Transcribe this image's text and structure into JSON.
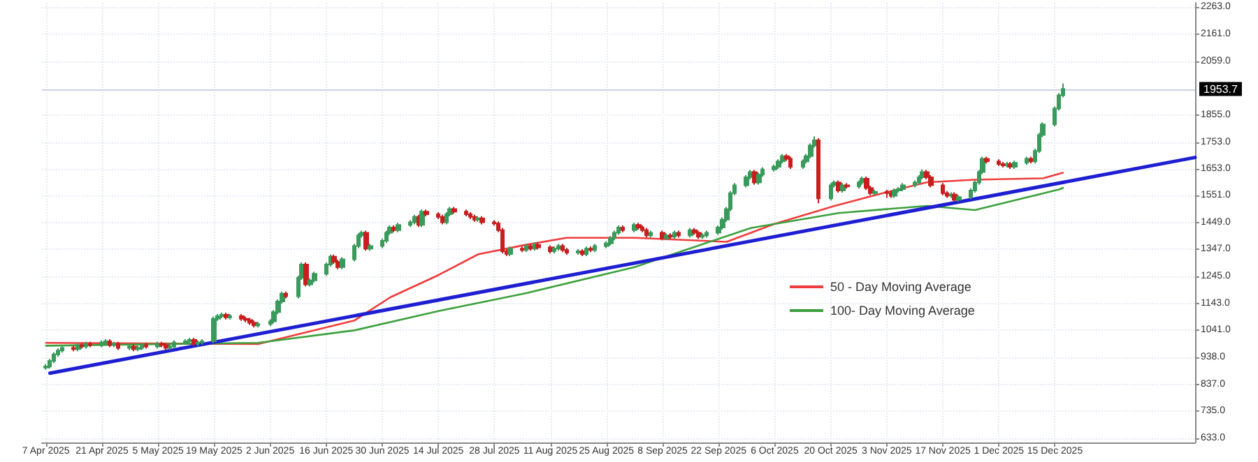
{
  "chart_data": {
    "type": "candlestick",
    "x": [
      "2025-04-07",
      "2025-04-08",
      "2025-04-09",
      "2025-04-10",
      "2025-04-11",
      "2025-04-14",
      "2025-04-15",
      "2025-04-16",
      "2025-04-17",
      "2025-04-18",
      "2025-04-21",
      "2025-04-22",
      "2025-04-23",
      "2025-04-24",
      "2025-04-25",
      "2025-04-28",
      "2025-04-29",
      "2025-04-30",
      "2025-05-01",
      "2025-05-02",
      "2025-05-05",
      "2025-05-06",
      "2025-05-07",
      "2025-05-08",
      "2025-05-09",
      "2025-05-12",
      "2025-05-13",
      "2025-05-14",
      "2025-05-15",
      "2025-05-16",
      "2025-05-19",
      "2025-05-20",
      "2025-05-21",
      "2025-05-22",
      "2025-05-23",
      "2025-05-26",
      "2025-05-27",
      "2025-05-28",
      "2025-05-29",
      "2025-05-30",
      "2025-06-02",
      "2025-06-03",
      "2025-06-04",
      "2025-06-05",
      "2025-06-06",
      "2025-06-09",
      "2025-06-10",
      "2025-06-11",
      "2025-06-12",
      "2025-06-13",
      "2025-06-16",
      "2025-06-17",
      "2025-06-18",
      "2025-06-19",
      "2025-06-20",
      "2025-06-23",
      "2025-06-24",
      "2025-06-25",
      "2025-06-26",
      "2025-06-27",
      "2025-06-30",
      "2025-07-01",
      "2025-07-02",
      "2025-07-03",
      "2025-07-04",
      "2025-07-07",
      "2025-07-08",
      "2025-07-09",
      "2025-07-10",
      "2025-07-11",
      "2025-07-14",
      "2025-07-15",
      "2025-07-16",
      "2025-07-17",
      "2025-07-18",
      "2025-07-21",
      "2025-07-22",
      "2025-07-23",
      "2025-07-24",
      "2025-07-25",
      "2025-07-28",
      "2025-07-29",
      "2025-07-30",
      "2025-07-31",
      "2025-08-01",
      "2025-08-04",
      "2025-08-05",
      "2025-08-06",
      "2025-08-07",
      "2025-08-08",
      "2025-08-11",
      "2025-08-12",
      "2025-08-13",
      "2025-08-14",
      "2025-08-15",
      "2025-08-18",
      "2025-08-19",
      "2025-08-20",
      "2025-08-21",
      "2025-08-22",
      "2025-08-25",
      "2025-08-26",
      "2025-08-27",
      "2025-08-28",
      "2025-08-29",
      "2025-09-01",
      "2025-09-02",
      "2025-09-03",
      "2025-09-04",
      "2025-09-05",
      "2025-09-08",
      "2025-09-09",
      "2025-09-10",
      "2025-09-11",
      "2025-09-12",
      "2025-09-15",
      "2025-09-16",
      "2025-09-17",
      "2025-09-18",
      "2025-09-19",
      "2025-09-22",
      "2025-09-23",
      "2025-09-24",
      "2025-09-25",
      "2025-09-26",
      "2025-09-29",
      "2025-09-30",
      "2025-10-01",
      "2025-10-02",
      "2025-10-03",
      "2025-10-06",
      "2025-10-07",
      "2025-10-08",
      "2025-10-09",
      "2025-10-10",
      "2025-10-13",
      "2025-10-14",
      "2025-10-15",
      "2025-10-16",
      "2025-10-17",
      "2025-10-20",
      "2025-10-21",
      "2025-10-22",
      "2025-10-23",
      "2025-10-24",
      "2025-10-27",
      "2025-10-28",
      "2025-10-29",
      "2025-10-30",
      "2025-10-31",
      "2025-11-03",
      "2025-11-04",
      "2025-11-05",
      "2025-11-06",
      "2025-11-07",
      "2025-11-10",
      "2025-11-11",
      "2025-11-12",
      "2025-11-13",
      "2025-11-14",
      "2025-11-17",
      "2025-11-18",
      "2025-11-19",
      "2025-11-20",
      "2025-11-21",
      "2025-11-24",
      "2025-11-25",
      "2025-11-26",
      "2025-11-27",
      "2025-11-28",
      "2025-12-01",
      "2025-12-02",
      "2025-12-03",
      "2025-12-04",
      "2025-12-05",
      "2025-12-08",
      "2025-12-09",
      "2025-12-10",
      "2025-12-11",
      "2025-12-12",
      "2025-12-15",
      "2025-12-16",
      "2025-12-17"
    ],
    "ohlc": [
      [
        900,
        913,
        892,
        905
      ],
      [
        905,
        933,
        897,
        925
      ],
      [
        925,
        958,
        917,
        950
      ],
      [
        950,
        973,
        942,
        965
      ],
      [
        965,
        983,
        957,
        975
      ],
      [
        975,
        983,
        962,
        970
      ],
      [
        970,
        993,
        962,
        985
      ],
      [
        985,
        993,
        972,
        980
      ],
      [
        980,
        998,
        972,
        990
      ],
      [
        990,
        998,
        977,
        985
      ],
      [
        985,
        1003,
        977,
        995
      ],
      [
        995,
        1008,
        987,
        1000
      ],
      [
        1000,
        1008,
        977,
        985
      ],
      [
        985,
        998,
        977,
        990
      ],
      [
        990,
        998,
        967,
        975
      ],
      [
        975,
        988,
        967,
        980
      ],
      [
        980,
        988,
        962,
        970
      ],
      [
        970,
        983,
        962,
        975
      ],
      [
        975,
        993,
        967,
        985
      ],
      [
        985,
        993,
        972,
        980
      ],
      [
        980,
        998,
        972,
        990
      ],
      [
        990,
        998,
        977,
        985
      ],
      [
        985,
        993,
        967,
        975
      ],
      [
        975,
        988,
        967,
        980
      ],
      [
        980,
        1003,
        972,
        995
      ],
      [
        995,
        1008,
        987,
        1000
      ],
      [
        1000,
        1013,
        992,
        1005
      ],
      [
        1005,
        1013,
        982,
        990
      ],
      [
        990,
        1003,
        982,
        995
      ],
      [
        995,
        1008,
        987,
        1000
      ],
      [
        1000,
        1093,
        992,
        1085
      ],
      [
        1085,
        1103,
        1077,
        1095
      ],
      [
        1095,
        1108,
        1087,
        1100
      ],
      [
        1100,
        1108,
        1082,
        1090
      ],
      [
        1090,
        1103,
        1082,
        1095
      ],
      [
        1095,
        1103,
        1077,
        1085
      ],
      [
        1085,
        1093,
        1072,
        1080
      ],
      [
        1080,
        1088,
        1062,
        1070
      ],
      [
        1070,
        1078,
        1052,
        1060
      ],
      [
        1060,
        1073,
        1052,
        1065
      ],
      [
        1065,
        1083,
        1057,
        1075
      ],
      [
        1075,
        1118,
        1067,
        1110
      ],
      [
        1110,
        1158,
        1102,
        1150
      ],
      [
        1150,
        1188,
        1142,
        1180
      ],
      [
        1180,
        1188,
        1162,
        1170
      ],
      [
        1170,
        1248,
        1162,
        1240
      ],
      [
        1240,
        1298,
        1232,
        1290
      ],
      [
        1290,
        1298,
        1207,
        1215
      ],
      [
        1215,
        1238,
        1207,
        1230
      ],
      [
        1230,
        1263,
        1222,
        1255
      ],
      [
        1255,
        1298,
        1247,
        1290
      ],
      [
        1290,
        1328,
        1282,
        1320
      ],
      [
        1320,
        1328,
        1292,
        1300
      ],
      [
        1300,
        1308,
        1272,
        1280
      ],
      [
        1280,
        1318,
        1272,
        1310
      ],
      [
        1310,
        1368,
        1302,
        1360
      ],
      [
        1360,
        1408,
        1352,
        1400
      ],
      [
        1400,
        1418,
        1392,
        1410
      ],
      [
        1410,
        1418,
        1342,
        1350
      ],
      [
        1350,
        1368,
        1342,
        1360
      ],
      [
        1360,
        1388,
        1352,
        1380
      ],
      [
        1380,
        1418,
        1372,
        1410
      ],
      [
        1410,
        1438,
        1402,
        1430
      ],
      [
        1430,
        1438,
        1412,
        1420
      ],
      [
        1420,
        1448,
        1412,
        1440
      ],
      [
        1440,
        1458,
        1432,
        1450
      ],
      [
        1450,
        1478,
        1442,
        1470
      ],
      [
        1470,
        1478,
        1432,
        1440
      ],
      [
        1440,
        1498,
        1432,
        1490
      ],
      [
        1490,
        1498,
        1472,
        1480
      ],
      [
        1480,
        1488,
        1462,
        1470
      ],
      [
        1470,
        1478,
        1442,
        1450
      ],
      [
        1450,
        1488,
        1442,
        1480
      ],
      [
        1480,
        1508,
        1472,
        1500
      ],
      [
        1500,
        1508,
        1482,
        1490
      ],
      [
        1490,
        1498,
        1472,
        1480
      ],
      [
        1480,
        1488,
        1462,
        1470
      ],
      [
        1470,
        1478,
        1452,
        1460
      ],
      [
        1460,
        1473,
        1452,
        1465
      ],
      [
        1465,
        1473,
        1442,
        1450
      ],
      [
        1450,
        1458,
        1437,
        1445
      ],
      [
        1445,
        1453,
        1412,
        1420
      ],
      [
        1420,
        1428,
        1332,
        1340
      ],
      [
        1340,
        1348,
        1322,
        1330
      ],
      [
        1330,
        1358,
        1322,
        1350
      ],
      [
        1350,
        1358,
        1337,
        1345
      ],
      [
        1345,
        1368,
        1337,
        1360
      ],
      [
        1360,
        1368,
        1342,
        1350
      ],
      [
        1350,
        1373,
        1342,
        1365
      ],
      [
        1365,
        1373,
        1347,
        1355
      ],
      [
        1355,
        1363,
        1332,
        1340
      ],
      [
        1340,
        1358,
        1332,
        1350
      ],
      [
        1350,
        1368,
        1342,
        1360
      ],
      [
        1360,
        1368,
        1337,
        1345
      ],
      [
        1345,
        1353,
        1327,
        1335
      ],
      [
        1335,
        1348,
        1327,
        1340
      ],
      [
        1340,
        1348,
        1322,
        1330
      ],
      [
        1330,
        1358,
        1322,
        1350
      ],
      [
        1350,
        1358,
        1337,
        1345
      ],
      [
        1345,
        1368,
        1337,
        1360
      ],
      [
        1360,
        1378,
        1352,
        1370
      ],
      [
        1370,
        1398,
        1362,
        1390
      ],
      [
        1390,
        1418,
        1382,
        1410
      ],
      [
        1410,
        1438,
        1402,
        1430
      ],
      [
        1430,
        1438,
        1412,
        1420
      ],
      [
        1420,
        1448,
        1412,
        1440
      ],
      [
        1440,
        1448,
        1422,
        1430
      ],
      [
        1430,
        1438,
        1412,
        1420
      ],
      [
        1420,
        1428,
        1392,
        1400
      ],
      [
        1400,
        1418,
        1392,
        1410
      ],
      [
        1410,
        1418,
        1382,
        1390
      ],
      [
        1390,
        1408,
        1382,
        1400
      ],
      [
        1400,
        1408,
        1387,
        1395
      ],
      [
        1395,
        1418,
        1387,
        1410
      ],
      [
        1410,
        1418,
        1392,
        1400
      ],
      [
        1400,
        1428,
        1392,
        1420
      ],
      [
        1420,
        1428,
        1402,
        1410
      ],
      [
        1410,
        1418,
        1387,
        1395
      ],
      [
        1395,
        1408,
        1387,
        1400
      ],
      [
        1400,
        1418,
        1392,
        1410
      ],
      [
        1410,
        1438,
        1402,
        1430
      ],
      [
        1430,
        1468,
        1422,
        1460
      ],
      [
        1460,
        1508,
        1452,
        1500
      ],
      [
        1500,
        1568,
        1492,
        1560
      ],
      [
        1560,
        1598,
        1552,
        1590
      ],
      [
        1590,
        1628,
        1582,
        1620
      ],
      [
        1620,
        1648,
        1612,
        1640
      ],
      [
        1640,
        1648,
        1592,
        1600
      ],
      [
        1600,
        1638,
        1592,
        1630
      ],
      [
        1630,
        1658,
        1622,
        1650
      ],
      [
        1650,
        1668,
        1642,
        1660
      ],
      [
        1660,
        1688,
        1652,
        1680
      ],
      [
        1680,
        1708,
        1672,
        1700
      ],
      [
        1700,
        1708,
        1682,
        1690
      ],
      [
        1690,
        1698,
        1652,
        1660
      ],
      [
        1660,
        1688,
        1652,
        1680
      ],
      [
        1680,
        1708,
        1672,
        1700
      ],
      [
        1700,
        1748,
        1692,
        1740
      ],
      [
        1740,
        1775,
        1732,
        1760
      ],
      [
        1760,
        1768,
        1522,
        1540
      ],
      [
        1540,
        1598,
        1532,
        1590
      ],
      [
        1590,
        1608,
        1582,
        1600
      ],
      [
        1600,
        1608,
        1562,
        1570
      ],
      [
        1570,
        1598,
        1562,
        1590
      ],
      [
        1590,
        1598,
        1577,
        1585
      ],
      [
        1585,
        1608,
        1577,
        1600
      ],
      [
        1600,
        1623,
        1592,
        1615
      ],
      [
        1615,
        1623,
        1572,
        1580
      ],
      [
        1580,
        1588,
        1552,
        1560
      ],
      [
        1560,
        1573,
        1552,
        1565
      ],
      [
        1565,
        1573,
        1542,
        1560
      ],
      [
        1560,
        1568,
        1542,
        1550
      ],
      [
        1550,
        1578,
        1542,
        1570
      ],
      [
        1570,
        1583,
        1562,
        1575
      ],
      [
        1575,
        1598,
        1567,
        1590
      ],
      [
        1590,
        1608,
        1582,
        1600
      ],
      [
        1600,
        1628,
        1592,
        1620
      ],
      [
        1620,
        1650,
        1612,
        1640
      ],
      [
        1640,
        1648,
        1612,
        1620
      ],
      [
        1620,
        1628,
        1582,
        1590
      ],
      [
        1590,
        1598,
        1552,
        1560
      ],
      [
        1560,
        1568,
        1542,
        1550
      ],
      [
        1550,
        1563,
        1542,
        1555
      ],
      [
        1555,
        1563,
        1527,
        1535
      ],
      [
        1535,
        1553,
        1527,
        1545
      ],
      [
        1545,
        1578,
        1537,
        1570
      ],
      [
        1570,
        1608,
        1562,
        1600
      ],
      [
        1600,
        1648,
        1592,
        1640
      ],
      [
        1640,
        1698,
        1632,
        1690
      ],
      [
        1690,
        1698,
        1672,
        1680
      ],
      [
        1680,
        1688,
        1662,
        1670
      ],
      [
        1670,
        1678,
        1657,
        1665
      ],
      [
        1665,
        1678,
        1657,
        1670
      ],
      [
        1670,
        1678,
        1652,
        1660
      ],
      [
        1660,
        1683,
        1652,
        1675
      ],
      [
        1675,
        1698,
        1667,
        1690
      ],
      [
        1690,
        1698,
        1672,
        1680
      ],
      [
        1680,
        1728,
        1672,
        1720
      ],
      [
        1720,
        1788,
        1712,
        1780
      ],
      [
        1780,
        1828,
        1772,
        1820
      ],
      [
        1820,
        1888,
        1812,
        1880
      ],
      [
        1880,
        1938,
        1872,
        1930
      ],
      [
        1930,
        1975,
        1922,
        1953.7
      ]
    ],
    "series": [
      {
        "name": "50 - Day Moving Average",
        "type": "line",
        "color": "#f03c3c",
        "x": [
          "2025-04-07",
          "2025-05-30",
          "2025-06-23",
          "2025-07-02",
          "2025-07-14",
          "2025-07-24",
          "2025-08-05",
          "2025-08-15",
          "2025-09-01",
          "2025-09-24",
          "2025-10-06",
          "2025-10-21",
          "2025-11-03",
          "2025-11-13",
          "2025-11-25",
          "2025-12-12",
          "2025-12-17"
        ],
        "values": [
          994,
          989,
          1078,
          1166,
          1250,
          1329,
          1365,
          1391,
          1391,
          1376,
          1444,
          1512,
          1564,
          1601,
          1611,
          1616,
          1637
        ]
      },
      {
        "name": "100- Day Moving Average",
        "type": "line",
        "color": "#3ca03c",
        "x": [
          "2025-04-07",
          "2025-05-30",
          "2025-06-23",
          "2025-07-14",
          "2025-08-05",
          "2025-09-01",
          "2025-09-30",
          "2025-10-22",
          "2025-11-13",
          "2025-11-25",
          "2025-12-16",
          "2025-12-17"
        ],
        "values": [
          983,
          994,
          1041,
          1114,
          1182,
          1280,
          1428,
          1485,
          1512,
          1496,
          1574,
          1580
        ]
      },
      {
        "type": "line",
        "color": "#1e1ed2",
        "x": [
          "2025-04-08",
          "2026-01-19"
        ],
        "values": [
          879,
          1695
        ]
      }
    ],
    "xlim": [
      "2025-04-06",
      "2026-01-19"
    ],
    "xticks": [
      {
        "value": "2025-04-07",
        "label": "7 Apr 2025"
      },
      {
        "value": "2025-04-21",
        "label": "21 Apr 2025"
      },
      {
        "value": "2025-05-05",
        "label": "5 May 2025"
      },
      {
        "value": "2025-05-19",
        "label": "19 May 2025"
      },
      {
        "value": "2025-06-02",
        "label": "2 Jun 2025"
      },
      {
        "value": "2025-06-16",
        "label": "16 Jun 2025"
      },
      {
        "value": "2025-06-30",
        "label": "30 Jun 2025"
      },
      {
        "value": "2025-07-14",
        "label": "14 Jul 2025"
      },
      {
        "value": "2025-07-28",
        "label": "28 Jul 2025"
      },
      {
        "value": "2025-08-11",
        "label": "11 Aug 2025"
      },
      {
        "value": "2025-08-25",
        "label": "25 Aug 2025"
      },
      {
        "value": "2025-09-08",
        "label": "8 Sep 2025"
      },
      {
        "value": "2025-09-22",
        "label": "22 Sep 2025"
      },
      {
        "value": "2025-10-06",
        "label": "6 Oct 2025"
      },
      {
        "value": "2025-10-20",
        "label": "20 Oct 2025"
      },
      {
        "value": "2025-11-03",
        "label": "3 Nov 2025"
      },
      {
        "value": "2025-11-17",
        "label": "17 Nov 2025"
      },
      {
        "value": "2025-12-01",
        "label": "1 Dec 2025"
      },
      {
        "value": "2025-12-15",
        "label": "15 Dec 2025"
      }
    ],
    "ylim": [
      617,
      2280
    ],
    "yticks": [
      {
        "value": 633,
        "label": "633.0"
      },
      {
        "value": 735,
        "label": "735.0"
      },
      {
        "value": 837,
        "label": "837.0"
      },
      {
        "value": 938,
        "label": "938.0"
      },
      {
        "value": 1041,
        "label": "1041.0"
      },
      {
        "value": 1143,
        "label": "1143.0"
      },
      {
        "value": 1245,
        "label": "1245.0"
      },
      {
        "value": 1347,
        "label": "1347.0"
      },
      {
        "value": 1449,
        "label": "1449.0"
      },
      {
        "value": 1551,
        "label": "1551.0"
      },
      {
        "value": 1653,
        "label": "1653.0"
      },
      {
        "value": 1753,
        "label": "1753.0"
      },
      {
        "value": 1855,
        "label": "1855.0"
      },
      {
        "value": 2059,
        "label": "2059.0"
      },
      {
        "value": 2161,
        "label": "2161.0"
      },
      {
        "value": 2263,
        "label": "2263.0"
      }
    ],
    "ref_lines": [
      {
        "axis": "y",
        "value": 1953.7,
        "label": "1953.7",
        "color": "#c8d2e6"
      }
    ],
    "grid": true,
    "legend": "bottom right",
    "marker": "none"
  }
}
